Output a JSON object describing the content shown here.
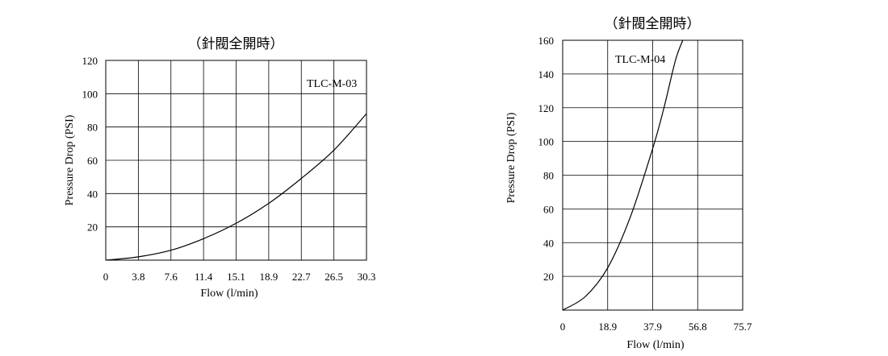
{
  "chart_data": [
    {
      "type": "line",
      "title": "（針閥全開時）",
      "xlabel": "Flow  (l/min)",
      "ylabel": "Pressure Drop    (PSI)",
      "series_label": "TLC-M-03",
      "x_ticks": [
        "0",
        "3.8",
        "7.6",
        "11.4",
        "15.1",
        "18.9",
        "22.7",
        "26.5",
        "30.3"
      ],
      "y_ticks": [
        "20",
        "40",
        "60",
        "80",
        "100",
        "120"
      ],
      "xlim": [
        0,
        30.3
      ],
      "ylim": [
        0,
        120
      ],
      "grid": true,
      "series": [
        {
          "x": [
            0,
            3.8,
            7.6,
            11.4,
            15.1,
            18.9,
            22.7,
            26.5,
            30.3
          ],
          "y": [
            0,
            2,
            6,
            13,
            22,
            34,
            49,
            66,
            88
          ]
        }
      ]
    },
    {
      "type": "line",
      "title": "（針閥全開時）",
      "xlabel": "Flow  (l/min)",
      "ylabel": "Pressure Drop    (PSI)",
      "series_label": "TLC-M-04",
      "x_ticks": [
        "0",
        "18.9",
        "37.9",
        "56.8",
        "75.7"
      ],
      "y_ticks": [
        "20",
        "40",
        "60",
        "80",
        "100",
        "120",
        "140",
        "160"
      ],
      "xlim": [
        0,
        75.7
      ],
      "ylim": [
        0,
        160
      ],
      "grid": true,
      "series": [
        {
          "x": [
            0,
            9.5,
            18.9,
            28.4,
            37.9,
            42.6,
            47.4,
            50.5
          ],
          "y": [
            0,
            8,
            25,
            55,
            96,
            120,
            148,
            160
          ]
        }
      ]
    }
  ]
}
